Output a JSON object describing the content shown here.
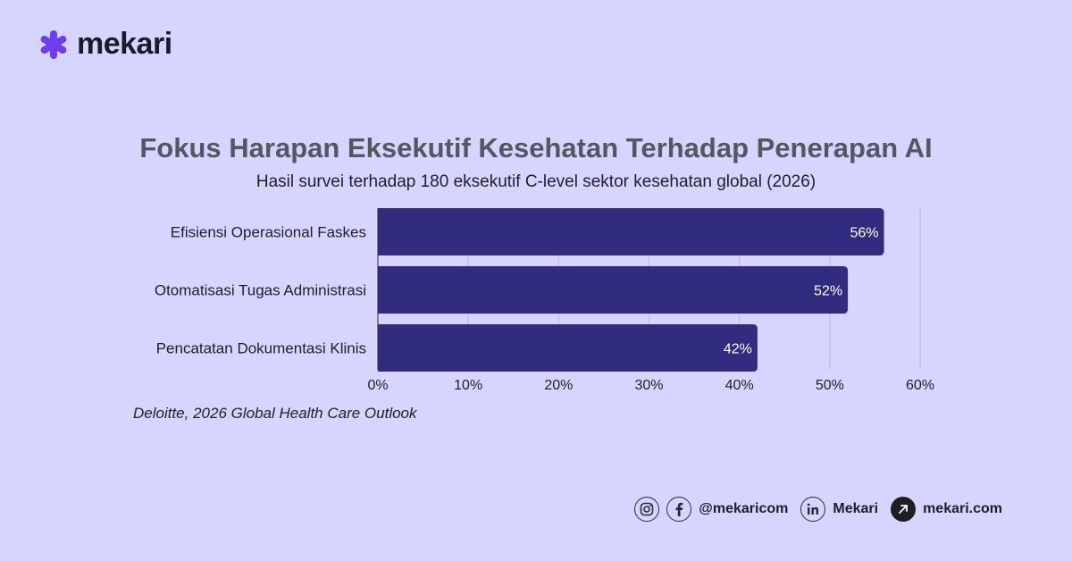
{
  "brand": {
    "name": "mekari",
    "accent": "#6f3cf0"
  },
  "chart_data": {
    "type": "bar",
    "orientation": "horizontal",
    "title": "Fokus Harapan Eksekutif Kesehatan Terhadap Penerapan AI",
    "subtitle": "Hasil survei terhadap 180 eksekutif C-level sektor kesehatan global (2026)",
    "categories": [
      "Efisiensi Operasional Faskes",
      "Otomatisasi Tugas Administrasi",
      "Pencatatan Dokumentasi Klinis"
    ],
    "values": [
      56,
      52,
      42
    ],
    "value_labels": [
      "56%",
      "52%",
      "42%"
    ],
    "xlim": [
      0,
      60
    ],
    "x_ticks": [
      0,
      10,
      20,
      30,
      40,
      50,
      60
    ],
    "x_tick_labels": [
      "0%",
      "10%",
      "20%",
      "30%",
      "40%",
      "50%",
      "60%"
    ],
    "bar_color": "#312c80",
    "grid": true
  },
  "source": "Deloitte, 2026 Global Health Care Outlook",
  "footer": {
    "instagram_icon": "instagram-icon",
    "facebook_icon": "facebook-icon",
    "social_handle": "@mekaricom",
    "linkedin_icon": "linkedin-icon",
    "linkedin_name": "Mekari",
    "web_icon": "arrow-up-right-icon",
    "website": "mekari.com"
  }
}
